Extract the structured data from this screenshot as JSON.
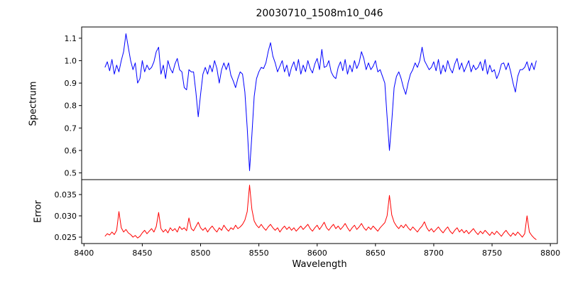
{
  "figure": {
    "title": "20030710_1508m10_046",
    "xlabel": "Wavelength"
  },
  "x_axis": {
    "ticks": [
      8400,
      8450,
      8500,
      8550,
      8600,
      8650,
      8700,
      8750,
      8800
    ],
    "tick_labels": [
      "8400",
      "8450",
      "8500",
      "8550",
      "8600",
      "8650",
      "8700",
      "8750",
      "8800"
    ]
  },
  "chart_data": [
    {
      "type": "line",
      "name": "spectrum",
      "ylabel": "Spectrum",
      "color": "#0000ff",
      "grid": false,
      "legend": "none",
      "x_start": 8418,
      "x_step": 2,
      "xlim": [
        8398,
        8806
      ],
      "ylim": [
        0.47,
        1.15
      ],
      "yticks": [
        0.5,
        0.6,
        0.7,
        0.8,
        0.9,
        1.0,
        1.1
      ],
      "ytick_labels": [
        "0.5",
        "0.6",
        "0.7",
        "0.8",
        "0.9",
        "1.0",
        "1.1"
      ],
      "absorption_line_centers": [
        8498,
        8542,
        8662
      ],
      "values": [
        0.97,
        0.995,
        0.955,
        1.005,
        0.94,
        0.98,
        0.95,
        1.0,
        1.04,
        1.12,
        1.06,
        1.0,
        0.96,
        0.99,
        0.9,
        0.92,
        1.0,
        0.95,
        0.98,
        0.96,
        0.97,
        0.995,
        1.04,
        1.06,
        0.94,
        0.98,
        0.92,
        1.0,
        0.965,
        0.945,
        0.985,
        1.01,
        0.96,
        0.95,
        0.88,
        0.87,
        0.96,
        0.95,
        0.95,
        0.86,
        0.75,
        0.85,
        0.94,
        0.97,
        0.94,
        0.98,
        0.95,
        1.0,
        0.965,
        0.9,
        0.96,
        0.99,
        0.96,
        0.99,
        0.935,
        0.91,
        0.88,
        0.92,
        0.95,
        0.94,
        0.86,
        0.7,
        0.51,
        0.67,
        0.84,
        0.92,
        0.95,
        0.97,
        0.965,
        0.99,
        1.04,
        1.08,
        1.02,
        0.99,
        0.95,
        0.975,
        1.0,
        0.95,
        0.98,
        0.93,
        0.97,
        0.995,
        0.955,
        1.005,
        0.94,
        0.98,
        0.95,
        1.0,
        0.965,
        0.945,
        0.985,
        1.01,
        0.96,
        1.05,
        0.97,
        0.975,
        1.0,
        0.95,
        0.93,
        0.92,
        0.97,
        0.995,
        0.955,
        1.005,
        0.94,
        0.98,
        0.95,
        1.0,
        0.965,
        0.99,
        1.04,
        1.01,
        0.96,
        0.99,
        0.96,
        0.975,
        1.0,
        0.95,
        0.96,
        0.93,
        0.9,
        0.75,
        0.6,
        0.73,
        0.88,
        0.93,
        0.95,
        0.92,
        0.88,
        0.85,
        0.9,
        0.94,
        0.96,
        0.99,
        0.97,
        1.0,
        1.06,
        1.0,
        0.98,
        0.96,
        0.97,
        0.995,
        0.955,
        1.005,
        0.94,
        0.98,
        0.95,
        1.0,
        0.965,
        0.945,
        0.985,
        1.01,
        0.96,
        0.99,
        0.95,
        0.975,
        1.0,
        0.95,
        0.98,
        0.96,
        0.97,
        0.995,
        0.955,
        1.005,
        0.94,
        0.98,
        0.95,
        0.96,
        0.92,
        0.945,
        0.985,
        0.99,
        0.96,
        0.99,
        0.95,
        0.9,
        0.86,
        0.93,
        0.96,
        0.96,
        0.97,
        0.995,
        0.955,
        0.99,
        0.96,
        1.0
      ]
    },
    {
      "type": "line",
      "name": "error",
      "ylabel": "Error",
      "color": "#ff0000",
      "grid": false,
      "legend": "none",
      "x_start": 8418,
      "x_step": 2,
      "xlim": [
        8398,
        8806
      ],
      "ylim": [
        0.0235,
        0.0385
      ],
      "yticks": [
        0.025,
        0.03,
        0.035
      ],
      "ytick_labels": [
        "0.025",
        "0.030",
        "0.035"
      ],
      "values": [
        0.0252,
        0.0258,
        0.0255,
        0.0262,
        0.0256,
        0.0266,
        0.031,
        0.0272,
        0.0262,
        0.0268,
        0.026,
        0.0256,
        0.025,
        0.0254,
        0.0248,
        0.0252,
        0.026,
        0.0266,
        0.0258,
        0.0264,
        0.027,
        0.0262,
        0.0275,
        0.0308,
        0.027,
        0.0262,
        0.0268,
        0.026,
        0.0272,
        0.0265,
        0.027,
        0.0262,
        0.0275,
        0.0268,
        0.0272,
        0.0265,
        0.0295,
        0.027,
        0.0265,
        0.0275,
        0.0285,
        0.0272,
        0.0266,
        0.0272,
        0.0262,
        0.027,
        0.0276,
        0.0268,
        0.0262,
        0.0272,
        0.0266,
        0.0278,
        0.027,
        0.0264,
        0.0272,
        0.0268,
        0.0278,
        0.027,
        0.0274,
        0.028,
        0.029,
        0.031,
        0.0372,
        0.0315,
        0.0288,
        0.0278,
        0.0272,
        0.028,
        0.0272,
        0.0266,
        0.0274,
        0.028,
        0.0272,
        0.0266,
        0.0272,
        0.0262,
        0.027,
        0.0276,
        0.0268,
        0.0274,
        0.0266,
        0.0272,
        0.0264,
        0.027,
        0.0276,
        0.0268,
        0.0274,
        0.028,
        0.027,
        0.0264,
        0.0272,
        0.0278,
        0.0268,
        0.0276,
        0.0285,
        0.0272,
        0.0266,
        0.0274,
        0.028,
        0.027,
        0.0276,
        0.0268,
        0.0274,
        0.0282,
        0.0272,
        0.0264,
        0.0272,
        0.0278,
        0.0268,
        0.0274,
        0.0282,
        0.0272,
        0.0266,
        0.0274,
        0.0268,
        0.0276,
        0.027,
        0.0264,
        0.0272,
        0.0278,
        0.0284,
        0.03,
        0.0348,
        0.0302,
        0.0285,
        0.0276,
        0.027,
        0.0278,
        0.0272,
        0.028,
        0.0272,
        0.0266,
        0.0274,
        0.0268,
        0.0262,
        0.027,
        0.0276,
        0.0286,
        0.0272,
        0.0264,
        0.027,
        0.0262,
        0.0268,
        0.0274,
        0.0266,
        0.026,
        0.0268,
        0.0274,
        0.0264,
        0.0258,
        0.0266,
        0.0272,
        0.0262,
        0.0268,
        0.026,
        0.0266,
        0.0258,
        0.0264,
        0.027,
        0.0262,
        0.0256,
        0.0264,
        0.0258,
        0.0266,
        0.026,
        0.0254,
        0.0262,
        0.0256,
        0.0264,
        0.0258,
        0.0252,
        0.026,
        0.0266,
        0.0258,
        0.0252,
        0.026,
        0.0254,
        0.0262,
        0.0256,
        0.025,
        0.0258,
        0.03,
        0.0262,
        0.0254,
        0.0248,
        0.0244
      ]
    }
  ]
}
